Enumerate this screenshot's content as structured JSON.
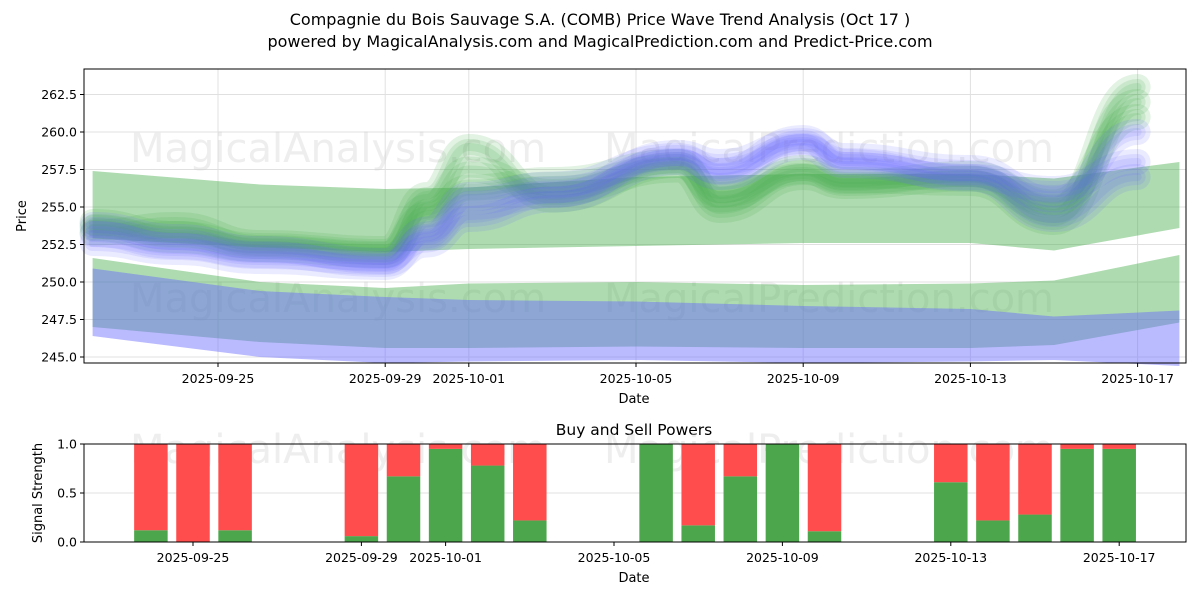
{
  "header": {
    "title_line1": "Compagnie du Bois Sauvage S.A. (COMB) Price Wave Trend Analysis (Oct 17 )",
    "title_line2": "powered by MagicalAnalysis.com and MagicalPrediction.com and Predict-Price.com"
  },
  "watermarks": [
    "MagicalAnalysis.com",
    "MagicalPrediction.com"
  ],
  "colors": {
    "green_band": "#4caf50",
    "blue_band": "#6666ff",
    "overlap_band": "#5a8fa0",
    "buy": "#4ca64c",
    "sell": "#ff4c4c",
    "grid": "#e0e0e0"
  },
  "chart_data": [
    {
      "type": "area",
      "title": "Compagnie du Bois Sauvage S.A. (COMB) Price Wave Trend Analysis (Oct 17 )",
      "xlabel": "Date",
      "ylabel": "Price",
      "ylim": [
        244.6,
        264.2
      ],
      "xlim": [
        "2025-09-21",
        "2025-10-18"
      ],
      "grid": true,
      "x_ticks": [
        "2025-09-25",
        "2025-09-29",
        "2025-10-01",
        "2025-10-05",
        "2025-10-09",
        "2025-10-13",
        "2025-10-17"
      ],
      "y_ticks": [
        "245.0",
        "247.5",
        "250.0",
        "252.5",
        "255.0",
        "257.5",
        "260.0",
        "262.5"
      ],
      "x": [
        "2025-09-22",
        "2025-09-26",
        "2025-09-29",
        "2025-10-01",
        "2025-10-05",
        "2025-10-09",
        "2025-10-13",
        "2025-10-15",
        "2025-10-18"
      ],
      "bands": [
        {
          "name": "upper-green-band",
          "color": "green",
          "upper": [
            257.4,
            256.5,
            256.2,
            256.3,
            257.0,
            257.2,
            257.2,
            256.9,
            258.0
          ],
          "lower": [
            252.9,
            252.3,
            252.0,
            252.2,
            252.4,
            252.6,
            252.6,
            252.1,
            253.6
          ]
        },
        {
          "name": "lower-green-band",
          "color": "green",
          "upper": [
            251.6,
            250.0,
            249.6,
            249.9,
            250.0,
            249.8,
            249.9,
            250.1,
            251.8
          ],
          "lower": [
            247.0,
            246.0,
            245.6,
            245.6,
            245.7,
            245.6,
            245.6,
            245.8,
            247.3
          ]
        },
        {
          "name": "blue-band",
          "color": "blue",
          "upper": [
            250.9,
            249.4,
            249.0,
            248.8,
            248.7,
            248.4,
            248.2,
            247.7,
            248.1
          ],
          "lower": [
            246.4,
            245.0,
            244.6,
            244.7,
            244.8,
            244.6,
            244.7,
            244.8,
            244.4
          ]
        }
      ],
      "wave_x": [
        "2025-09-22",
        "2025-09-24",
        "2025-09-26",
        "2025-09-29",
        "2025-09-30",
        "2025-10-01",
        "2025-10-03",
        "2025-10-06",
        "2025-10-07",
        "2025-10-09",
        "2025-10-10",
        "2025-10-13",
        "2025-10-15",
        "2025-10-17"
      ],
      "wave_series": [
        {
          "color": "green",
          "values": [
            254.0,
            253.2,
            252.4,
            252.0,
            254.5,
            256.3,
            256.8,
            258.0,
            255.5,
            257.6,
            256.8,
            256.6,
            254.0,
            262.0
          ]
        },
        {
          "color": "green",
          "values": [
            253.6,
            252.8,
            252.2,
            251.8,
            255.0,
            257.5,
            256.0,
            257.5,
            254.8,
            257.0,
            256.4,
            256.9,
            254.8,
            263.0
          ]
        },
        {
          "color": "green",
          "values": [
            253.3,
            253.8,
            252.6,
            252.2,
            255.8,
            259.0,
            255.5,
            257.8,
            255.8,
            257.4,
            256.6,
            257.2,
            255.3,
            261.0
          ]
        },
        {
          "color": "blue",
          "values": [
            253.8,
            253.0,
            252.2,
            251.4,
            253.5,
            255.8,
            256.5,
            258.4,
            257.4,
            259.6,
            258.0,
            256.9,
            254.2,
            257.0
          ]
        },
        {
          "color": "blue",
          "values": [
            252.6,
            252.0,
            251.4,
            251.0,
            253.0,
            255.0,
            255.8,
            258.6,
            258.0,
            259.4,
            258.4,
            257.6,
            255.5,
            260.0
          ]
        },
        {
          "color": "blue",
          "values": [
            253.2,
            252.4,
            251.8,
            251.2,
            252.5,
            254.2,
            255.5,
            258.0,
            257.0,
            259.0,
            257.8,
            257.0,
            256.2,
            258.0
          ]
        }
      ]
    },
    {
      "type": "bar",
      "title": "Buy and Sell Powers",
      "xlabel": "Date",
      "ylabel": "Signal Strength",
      "ylim": [
        0.0,
        1.0
      ],
      "y_ticks": [
        "0.0",
        "0.5",
        "1.0"
      ],
      "x_ticks": [
        "2025-09-25",
        "2025-09-29",
        "2025-10-01",
        "2025-10-05",
        "2025-10-09",
        "2025-10-13",
        "2025-10-17"
      ],
      "categories": [
        "2025-09-24",
        "2025-09-25",
        "2025-09-26",
        "2025-09-29",
        "2025-09-30",
        "2025-10-01",
        "2025-10-02",
        "2025-10-03",
        "2025-10-06",
        "2025-10-07",
        "2025-10-08",
        "2025-10-09",
        "2025-10-10",
        "2025-10-13",
        "2025-10-14",
        "2025-10-15",
        "2025-10-16",
        "2025-10-17"
      ],
      "series": [
        {
          "name": "Buy",
          "values": [
            0.12,
            0.0,
            0.12,
            0.06,
            0.67,
            0.95,
            0.78,
            0.22,
            1.0,
            0.17,
            0.67,
            1.0,
            0.11,
            0.61,
            0.22,
            0.28,
            0.95,
            0.95
          ]
        },
        {
          "name": "Sell",
          "values": [
            0.88,
            1.0,
            0.88,
            0.94,
            0.33,
            0.05,
            0.22,
            0.78,
            0.0,
            0.83,
            0.33,
            0.0,
            0.89,
            0.39,
            0.78,
            0.72,
            0.05,
            0.05
          ]
        }
      ]
    }
  ]
}
